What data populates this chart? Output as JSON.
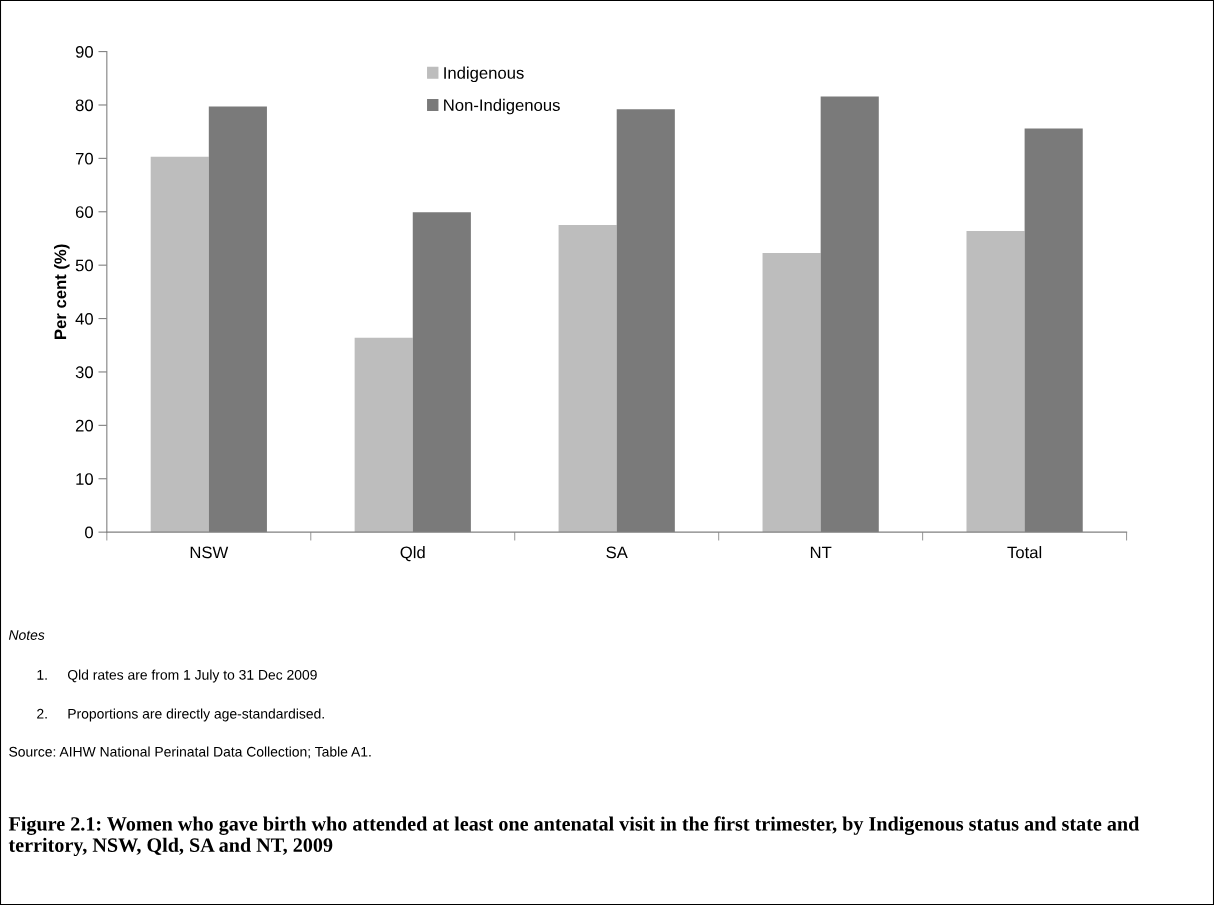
{
  "chart_data": {
    "type": "bar",
    "title": "Figure 2.1: Women who gave birth who attended at least one antenatal visit in the first trimester, by Indigenous status and state and territory, NSW, Qld, SA and NT, 2009",
    "ylabel": "Per cent (%)",
    "categories": [
      "NSW",
      "Qld",
      "SA",
      "NT",
      "Total"
    ],
    "series": [
      {
        "name": "Indigenous",
        "color": "#bdbdbd",
        "values": [
          70.3,
          36.4,
          57.5,
          52.3,
          56.4
        ]
      },
      {
        "name": "Non-Indigenous",
        "color": "#7a7a7a",
        "values": [
          79.7,
          59.9,
          79.2,
          81.6,
          75.6
        ]
      }
    ],
    "ylim": [
      0,
      90
    ],
    "yticks": [
      0,
      10,
      20,
      30,
      40,
      50,
      60,
      70,
      80,
      90
    ],
    "grid": false,
    "legend": "top",
    "annotations": [
      "Notes",
      "1.     Qld rates are from 1 July to 31 Dec 2009",
      "2.     Proportions are directly age-standardised.",
      "Source: AIHW National Perinatal Data Collection; Table A1."
    ]
  }
}
